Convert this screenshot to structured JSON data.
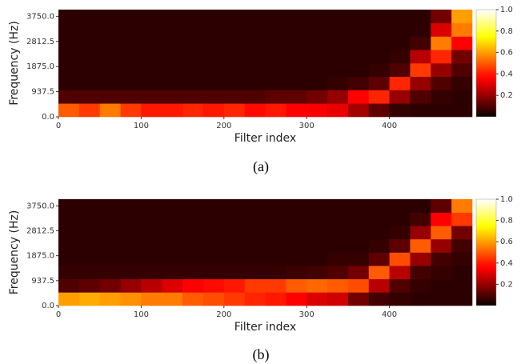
{
  "chart_data": [
    {
      "type": "heatmap",
      "colormap": "hot",
      "caption": "(a)",
      "xlabel": "Filter index",
      "ylabel": "Frequency (Hz)",
      "xlim": [
        0,
        500
      ],
      "ylim": [
        0,
        4000
      ],
      "clim": [
        0,
        1
      ],
      "xticks": [
        0,
        100,
        200,
        300,
        400
      ],
      "yticks": [
        {
          "value": 0,
          "label": "0.0"
        },
        937.5,
        {
          "value": 1875,
          "label": "1875.0"
        },
        2812.5,
        {
          "value": 3750,
          "label": "3750.0"
        }
      ],
      "cticks": [
        0.2,
        0.4,
        0.6,
        0.8,
        {
          "value": 1,
          "label": "1.0"
        }
      ],
      "xbins": [
        0,
        25,
        50,
        75,
        100,
        125,
        150,
        175,
        200,
        225,
        250,
        275,
        300,
        325,
        350,
        375,
        400,
        425,
        450,
        475,
        500
      ],
      "ybins": [
        0,
        500,
        1000,
        1500,
        2000,
        2500,
        3000,
        3500,
        4000
      ],
      "z": [
        [
          0.5,
          0.45,
          0.55,
          0.45,
          0.4,
          0.4,
          0.42,
          0.4,
          0.42,
          0.38,
          0.4,
          0.36,
          0.34,
          0.32,
          0.22,
          0.12,
          0.06,
          0.05,
          0.05,
          0.05
        ],
        [
          0.1,
          0.1,
          0.1,
          0.1,
          0.1,
          0.1,
          0.1,
          0.1,
          0.1,
          0.1,
          0.12,
          0.12,
          0.15,
          0.2,
          0.35,
          0.42,
          0.2,
          0.1,
          0.06,
          0.05
        ],
        [
          0.05,
          0.05,
          0.05,
          0.05,
          0.05,
          0.05,
          0.05,
          0.05,
          0.05,
          0.05,
          0.05,
          0.05,
          0.05,
          0.06,
          0.08,
          0.12,
          0.42,
          0.2,
          0.1,
          0.06
        ],
        [
          0.05,
          0.05,
          0.05,
          0.05,
          0.05,
          0.05,
          0.05,
          0.05,
          0.05,
          0.05,
          0.05,
          0.05,
          0.05,
          0.05,
          0.05,
          0.06,
          0.1,
          0.45,
          0.2,
          0.1
        ],
        [
          0.05,
          0.05,
          0.05,
          0.05,
          0.05,
          0.05,
          0.05,
          0.05,
          0.05,
          0.05,
          0.05,
          0.05,
          0.05,
          0.05,
          0.05,
          0.05,
          0.06,
          0.25,
          0.42,
          0.15
        ],
        [
          0.05,
          0.05,
          0.05,
          0.05,
          0.05,
          0.05,
          0.05,
          0.05,
          0.05,
          0.05,
          0.05,
          0.05,
          0.05,
          0.05,
          0.05,
          0.05,
          0.05,
          0.08,
          0.55,
          0.35
        ],
        [
          0.05,
          0.05,
          0.05,
          0.05,
          0.05,
          0.05,
          0.05,
          0.05,
          0.05,
          0.05,
          0.05,
          0.05,
          0.05,
          0.05,
          0.05,
          0.05,
          0.05,
          0.05,
          0.3,
          0.55
        ],
        [
          0.05,
          0.05,
          0.05,
          0.05,
          0.05,
          0.05,
          0.05,
          0.05,
          0.05,
          0.05,
          0.05,
          0.05,
          0.05,
          0.05,
          0.05,
          0.05,
          0.05,
          0.05,
          0.15,
          0.6
        ]
      ]
    },
    {
      "type": "heatmap",
      "colormap": "hot",
      "caption": "(b)",
      "xlabel": "Filter index",
      "ylabel": "Frequency (Hz)",
      "xlim": [
        0,
        500
      ],
      "ylim": [
        0,
        4000
      ],
      "clim": [
        0,
        1
      ],
      "xticks": [
        0,
        100,
        200,
        300,
        400
      ],
      "yticks": [
        {
          "value": 0,
          "label": "0.0"
        },
        937.5,
        {
          "value": 1875,
          "label": "1875.0"
        },
        2812.5,
        {
          "value": 3750,
          "label": "3750.0"
        }
      ],
      "cticks": [
        0.2,
        0.4,
        0.6,
        0.8,
        {
          "value": 1,
          "label": "1.0"
        }
      ],
      "xbins": [
        0,
        25,
        50,
        75,
        100,
        125,
        150,
        175,
        200,
        225,
        250,
        275,
        300,
        325,
        350,
        375,
        400,
        425,
        450,
        475,
        500
      ],
      "ybins": [
        0,
        500,
        1000,
        1500,
        2000,
        2500,
        3000,
        3500,
        4000
      ],
      "z": [
        [
          0.6,
          0.62,
          0.6,
          0.58,
          0.55,
          0.55,
          0.5,
          0.48,
          0.45,
          0.42,
          0.4,
          0.35,
          0.3,
          0.28,
          0.15,
          0.08,
          0.06,
          0.05,
          0.05,
          0.05
        ],
        [
          0.1,
          0.12,
          0.15,
          0.2,
          0.25,
          0.3,
          0.35,
          0.38,
          0.4,
          0.45,
          0.45,
          0.5,
          0.52,
          0.5,
          0.48,
          0.25,
          0.1,
          0.06,
          0.05,
          0.05
        ],
        [
          0.06,
          0.06,
          0.06,
          0.06,
          0.06,
          0.06,
          0.06,
          0.06,
          0.06,
          0.06,
          0.06,
          0.07,
          0.08,
          0.1,
          0.15,
          0.5,
          0.25,
          0.08,
          0.06,
          0.05
        ],
        [
          0.05,
          0.05,
          0.05,
          0.05,
          0.05,
          0.05,
          0.05,
          0.05,
          0.05,
          0.05,
          0.05,
          0.05,
          0.05,
          0.06,
          0.06,
          0.12,
          0.48,
          0.2,
          0.08,
          0.06
        ],
        [
          0.05,
          0.05,
          0.05,
          0.05,
          0.05,
          0.05,
          0.05,
          0.05,
          0.05,
          0.05,
          0.05,
          0.05,
          0.05,
          0.05,
          0.05,
          0.06,
          0.12,
          0.5,
          0.2,
          0.08
        ],
        [
          0.05,
          0.05,
          0.05,
          0.05,
          0.05,
          0.05,
          0.05,
          0.05,
          0.05,
          0.05,
          0.05,
          0.05,
          0.05,
          0.05,
          0.05,
          0.05,
          0.06,
          0.2,
          0.5,
          0.15
        ],
        [
          0.05,
          0.05,
          0.05,
          0.05,
          0.05,
          0.05,
          0.05,
          0.05,
          0.05,
          0.05,
          0.05,
          0.05,
          0.05,
          0.05,
          0.05,
          0.05,
          0.05,
          0.08,
          0.35,
          0.45
        ],
        [
          0.05,
          0.05,
          0.05,
          0.05,
          0.05,
          0.05,
          0.05,
          0.05,
          0.05,
          0.05,
          0.05,
          0.05,
          0.05,
          0.05,
          0.05,
          0.05,
          0.05,
          0.05,
          0.12,
          0.55
        ]
      ]
    }
  ]
}
